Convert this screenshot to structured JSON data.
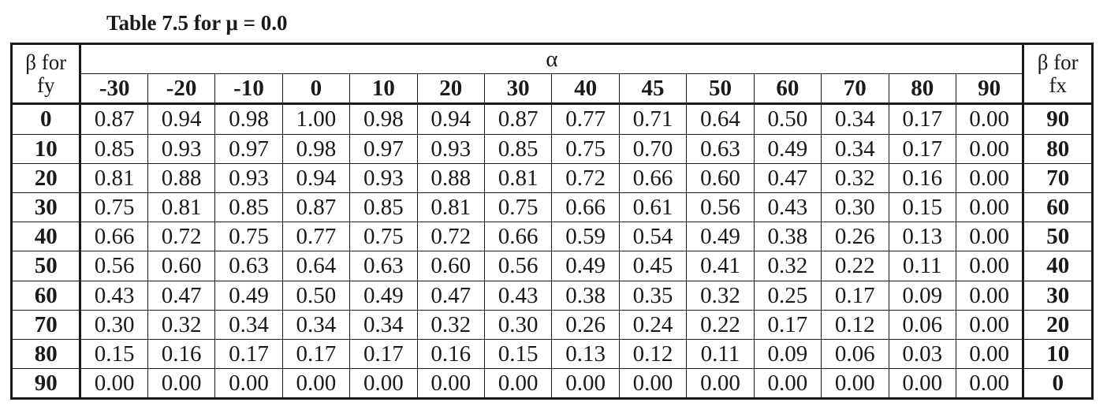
{
  "caption": "Table 7.5 for μ = 0.0",
  "header": {
    "left_label_top": "β for",
    "left_label_bottom": "fy",
    "group_label": "α",
    "right_label_top": "β for",
    "right_label_bottom": "fx",
    "alpha_values": [
      "-30",
      "-20",
      "-10",
      "0",
      "10",
      "20",
      "30",
      "40",
      "45",
      "50",
      "60",
      "70",
      "80",
      "90"
    ]
  },
  "rows": [
    {
      "beta_fy": "0",
      "beta_fx": "90",
      "values": [
        "0.87",
        "0.94",
        "0.98",
        "1.00",
        "0.98",
        "0.94",
        "0.87",
        "0.77",
        "0.71",
        "0.64",
        "0.50",
        "0.34",
        "0.17",
        "0.00"
      ]
    },
    {
      "beta_fy": "10",
      "beta_fx": "80",
      "values": [
        "0.85",
        "0.93",
        "0.97",
        "0.98",
        "0.97",
        "0.93",
        "0.85",
        "0.75",
        "0.70",
        "0.63",
        "0.49",
        "0.34",
        "0.17",
        "0.00"
      ]
    },
    {
      "beta_fy": "20",
      "beta_fx": "70",
      "values": [
        "0.81",
        "0.88",
        "0.93",
        "0.94",
        "0.93",
        "0.88",
        "0.81",
        "0.72",
        "0.66",
        "0.60",
        "0.47",
        "0.32",
        "0.16",
        "0.00"
      ]
    },
    {
      "beta_fy": "30",
      "beta_fx": "60",
      "values": [
        "0.75",
        "0.81",
        "0.85",
        "0.87",
        "0.85",
        "0.81",
        "0.75",
        "0.66",
        "0.61",
        "0.56",
        "0.43",
        "0.30",
        "0.15",
        "0.00"
      ]
    },
    {
      "beta_fy": "40",
      "beta_fx": "50",
      "values": [
        "0.66",
        "0.72",
        "0.75",
        "0.77",
        "0.75",
        "0.72",
        "0.66",
        "0.59",
        "0.54",
        "0.49",
        "0.38",
        "0.26",
        "0.13",
        "0.00"
      ]
    },
    {
      "beta_fy": "50",
      "beta_fx": "40",
      "values": [
        "0.56",
        "0.60",
        "0.63",
        "0.64",
        "0.63",
        "0.60",
        "0.56",
        "0.49",
        "0.45",
        "0.41",
        "0.32",
        "0.22",
        "0.11",
        "0.00"
      ]
    },
    {
      "beta_fy": "60",
      "beta_fx": "30",
      "values": [
        "0.43",
        "0.47",
        "0.49",
        "0.50",
        "0.49",
        "0.47",
        "0.43",
        "0.38",
        "0.35",
        "0.32",
        "0.25",
        "0.17",
        "0.09",
        "0.00"
      ]
    },
    {
      "beta_fy": "70",
      "beta_fx": "20",
      "values": [
        "0.30",
        "0.32",
        "0.34",
        "0.34",
        "0.34",
        "0.32",
        "0.30",
        "0.26",
        "0.24",
        "0.22",
        "0.17",
        "0.12",
        "0.06",
        "0.00"
      ]
    },
    {
      "beta_fy": "80",
      "beta_fx": "10",
      "values": [
        "0.15",
        "0.16",
        "0.17",
        "0.17",
        "0.17",
        "0.16",
        "0.15",
        "0.13",
        "0.12",
        "0.11",
        "0.09",
        "0.06",
        "0.03",
        "0.00"
      ]
    },
    {
      "beta_fy": "90",
      "beta_fx": "0",
      "values": [
        "0.00",
        "0.00",
        "0.00",
        "0.00",
        "0.00",
        "0.00",
        "0.00",
        "0.00",
        "0.00",
        "0.00",
        "0.00",
        "0.00",
        "0.00",
        "0.00"
      ]
    }
  ]
}
